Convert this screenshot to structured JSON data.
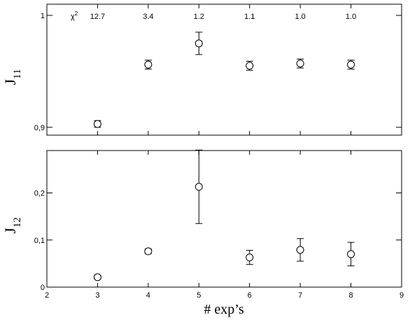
{
  "chart_data": [
    {
      "type": "scatter",
      "ylabel": "J",
      "ylabel_sub": "11",
      "xlim": [
        2,
        9
      ],
      "ylim": [
        0.893,
        1.01
      ],
      "ytick_values": [
        0.9,
        1.0
      ],
      "ytick_labels": [
        "0,9",
        "1"
      ],
      "x": [
        3,
        4,
        5,
        6,
        7,
        8
      ],
      "y": [
        0.903,
        0.956,
        0.975,
        0.955,
        0.957,
        0.956
      ],
      "err": [
        0.003,
        0.004,
        0.01,
        0.004,
        0.004,
        0.004
      ],
      "chi2_label": "χ",
      "chi2_sup": "2",
      "chi2_values": [
        "12.7",
        "3.4",
        "1.2",
        "1.1",
        "1.0",
        "1.0"
      ]
    },
    {
      "type": "scatter",
      "ylabel": "J",
      "ylabel_sub": "12",
      "xlabel": "# exp’s",
      "xlim": [
        2,
        9
      ],
      "ylim": [
        0,
        0.29
      ],
      "ytick_values": [
        0,
        0.1,
        0.2
      ],
      "ytick_labels": [
        "0",
        "0,1",
        "0,2"
      ],
      "xtick_labels": [
        "2",
        "3",
        "4",
        "5",
        "6",
        "7",
        "8",
        "9"
      ],
      "x": [
        3,
        4,
        5,
        6,
        7,
        8
      ],
      "y": [
        0.021,
        0.076,
        0.213,
        0.063,
        0.079,
        0.07
      ],
      "err": [
        0.004,
        0.005,
        0.078,
        0.015,
        0.024,
        0.025
      ]
    }
  ]
}
